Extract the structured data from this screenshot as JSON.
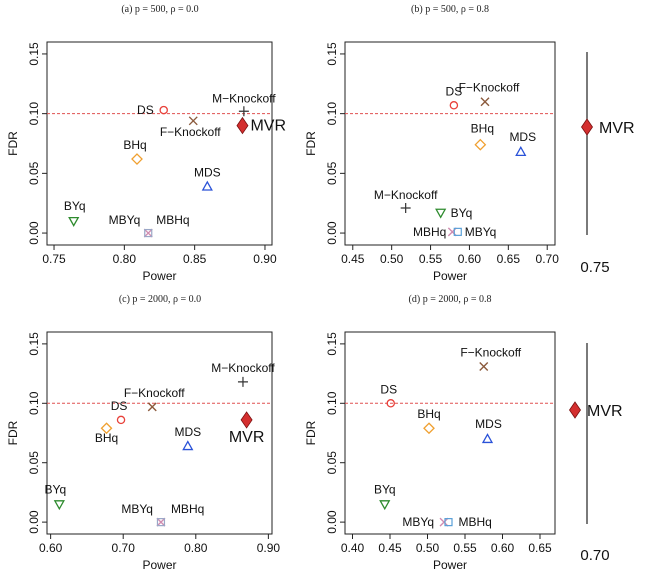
{
  "chart_data": [
    {
      "type": "scatter",
      "title": "(a) p = 500,  ρ = 0.0",
      "xlabel": "Power",
      "ylabel": "FDR",
      "xlim": [
        0.745,
        0.905
      ],
      "ylim": [
        -0.01,
        0.16
      ],
      "xticks": [
        0.75,
        0.8,
        0.85,
        0.9
      ],
      "xtick_labels": [
        "0.75",
        "0.80",
        "0.85",
        "0.90"
      ],
      "yticks": [
        0.0,
        0.05,
        0.1,
        0.15
      ],
      "ytick_labels": [
        "0.00",
        "0.05",
        "0.10",
        "0.15"
      ],
      "fdr_line": 0.1,
      "grid": false,
      "points": [
        {
          "label": "DS",
          "x": 0.828,
          "y": 0.103,
          "marker": "circle",
          "color": "#e8413a"
        },
        {
          "label": "M−Knockoff",
          "x": 0.885,
          "y": 0.102,
          "marker": "plus",
          "color": "#333333"
        },
        {
          "label": "F−Knockoff",
          "x": 0.849,
          "y": 0.094,
          "marker": "cross",
          "color": "#8b5a3c"
        },
        {
          "label": "MVR",
          "x": 0.884,
          "y": 0.09,
          "marker": "diamond-filled",
          "color": "#d42f2f"
        },
        {
          "label": "BHq",
          "x": 0.809,
          "y": 0.062,
          "marker": "diamond",
          "color": "#f0a030"
        },
        {
          "label": "MDS",
          "x": 0.859,
          "y": 0.039,
          "marker": "triangle-up",
          "color": "#2a52d8"
        },
        {
          "label": "BYq",
          "x": 0.764,
          "y": 0.01,
          "marker": "triangle-down",
          "color": "#2e8b2e"
        },
        {
          "label": "MBYq",
          "x": 0.817,
          "y": 0.0,
          "marker": "cross",
          "color": "#d08cb0"
        },
        {
          "label": "MBHq",
          "x": 0.817,
          "y": 0.0,
          "marker": "square",
          "color": "#9aa7c7"
        }
      ]
    },
    {
      "type": "scatter",
      "title": "(b) p = 500,  ρ = 0.8",
      "xlabel": "Power",
      "ylabel": "FDR",
      "xlim": [
        0.44,
        0.71
      ],
      "ylim": [
        -0.01,
        0.16
      ],
      "xticks": [
        0.45,
        0.5,
        0.55,
        0.6,
        0.65,
        0.7
      ],
      "xtick_labels": [
        "0.45",
        "0.50",
        "0.55",
        "0.60",
        "0.65",
        "0.70"
      ],
      "yticks": [
        0.0,
        0.05,
        0.1,
        0.15
      ],
      "ytick_labels": [
        "0.00",
        "0.05",
        "0.10",
        "0.15"
      ],
      "fdr_line": 0.1,
      "grid": false,
      "points": [
        {
          "label": "DS",
          "x": 0.58,
          "y": 0.107,
          "marker": "circle",
          "color": "#e8413a"
        },
        {
          "label": "F−Knockoff",
          "x": 0.62,
          "y": 0.11,
          "marker": "cross",
          "color": "#8b5a3c"
        },
        {
          "label": "BHq",
          "x": 0.614,
          "y": 0.074,
          "marker": "diamond",
          "color": "#f0a030"
        },
        {
          "label": "MDS",
          "x": 0.666,
          "y": 0.068,
          "marker": "triangle-up",
          "color": "#2a52d8"
        },
        {
          "label": "M−Knockoff",
          "x": 0.518,
          "y": 0.021,
          "marker": "plus",
          "color": "#333333"
        },
        {
          "label": "BYq",
          "x": 0.563,
          "y": 0.017,
          "marker": "triangle-down",
          "color": "#2e8b2e"
        },
        {
          "label": "MBHq",
          "x": 0.578,
          "y": 0.001,
          "marker": "cross",
          "color": "#d08cb0"
        },
        {
          "label": "MBYq",
          "x": 0.585,
          "y": 0.001,
          "marker": "square",
          "color": "#5aa0d8"
        }
      ]
    },
    {
      "type": "scatter",
      "title": "(c) p = 2000,  ρ = 0.0",
      "xlabel": "Power",
      "ylabel": "FDR",
      "xlim": [
        0.595,
        0.905
      ],
      "ylim": [
        -0.01,
        0.16
      ],
      "xticks": [
        0.6,
        0.7,
        0.8,
        0.9
      ],
      "xtick_labels": [
        "0.60",
        "0.70",
        "0.80",
        "0.90"
      ],
      "yticks": [
        0.0,
        0.05,
        0.1,
        0.15
      ],
      "ytick_labels": [
        "0.00",
        "0.05",
        "0.10",
        "0.15"
      ],
      "fdr_line": 0.1,
      "grid": false,
      "points": [
        {
          "label": "M−Knockoff",
          "x": 0.865,
          "y": 0.118,
          "marker": "plus",
          "color": "#333333"
        },
        {
          "label": "F−Knockoff",
          "x": 0.74,
          "y": 0.097,
          "marker": "cross",
          "color": "#8b5a3c"
        },
        {
          "label": "DS",
          "x": 0.697,
          "y": 0.086,
          "marker": "circle",
          "color": "#e8413a"
        },
        {
          "label": "BHq",
          "x": 0.677,
          "y": 0.079,
          "marker": "diamond",
          "color": "#f0a030"
        },
        {
          "label": "MVR",
          "x": 0.87,
          "y": 0.086,
          "marker": "diamond-filled",
          "color": "#d42f2f"
        },
        {
          "label": "MDS",
          "x": 0.789,
          "y": 0.064,
          "marker": "triangle-up",
          "color": "#2a52d8"
        },
        {
          "label": "BYq",
          "x": 0.612,
          "y": 0.015,
          "marker": "triangle-down",
          "color": "#2e8b2e"
        },
        {
          "label": "MBYq",
          "x": 0.752,
          "y": 0.0,
          "marker": "cross",
          "color": "#d08cb0"
        },
        {
          "label": "MBHq",
          "x": 0.752,
          "y": 0.0,
          "marker": "square",
          "color": "#9aa7c7"
        }
      ]
    },
    {
      "type": "scatter",
      "title": "(d) p = 2000,  ρ = 0.8",
      "xlabel": "Power",
      "ylabel": "FDR",
      "xlim": [
        0.39,
        0.67
      ],
      "ylim": [
        -0.01,
        0.16
      ],
      "xticks": [
        0.4,
        0.45,
        0.5,
        0.55,
        0.6,
        0.65
      ],
      "xtick_labels": [
        "0.40",
        "0.45",
        "0.50",
        "0.55",
        "0.60",
        "0.65"
      ],
      "yticks": [
        0.0,
        0.05,
        0.1,
        0.15
      ],
      "ytick_labels": [
        "0.00",
        "0.05",
        "0.10",
        "0.15"
      ],
      "fdr_line": 0.1,
      "grid": false,
      "points": [
        {
          "label": "F−Knockoff",
          "x": 0.575,
          "y": 0.131,
          "marker": "cross",
          "color": "#8b5a3c"
        },
        {
          "label": "DS",
          "x": 0.451,
          "y": 0.1,
          "marker": "circle",
          "color": "#e8413a"
        },
        {
          "label": "BHq",
          "x": 0.502,
          "y": 0.079,
          "marker": "diamond",
          "color": "#f0a030"
        },
        {
          "label": "MDS",
          "x": 0.58,
          "y": 0.07,
          "marker": "triangle-up",
          "color": "#2a52d8"
        },
        {
          "label": "BYq",
          "x": 0.443,
          "y": 0.015,
          "marker": "triangle-down",
          "color": "#2e8b2e"
        },
        {
          "label": "MBYq",
          "x": 0.522,
          "y": 0.0,
          "marker": "cross",
          "color": "#d08cb0"
        },
        {
          "label": "MBHq",
          "x": 0.528,
          "y": 0.0,
          "marker": "square",
          "color": "#5aa0d8"
        }
      ]
    }
  ],
  "side_axes": [
    {
      "label_top": "MVR",
      "label_bottom": "0.75",
      "marker_color": "#d42f2f"
    },
    {
      "label_top": "MVR",
      "label_bottom": "0.70",
      "marker_color": "#d42f2f"
    }
  ]
}
